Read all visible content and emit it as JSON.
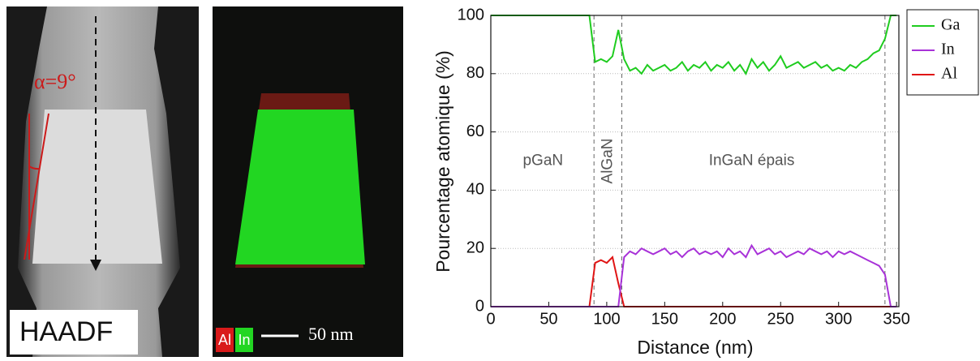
{
  "chart_data": {
    "type": "line",
    "y_label": "Pourcentage atomique (%)",
    "x_label": "Distance (nm)",
    "xlim": [
      0,
      352
    ],
    "ylim": [
      0,
      100
    ],
    "xticks": [
      0,
      50,
      100,
      150,
      200,
      250,
      300,
      350
    ],
    "yticks": [
      0,
      20,
      40,
      60,
      80,
      100
    ],
    "grid": true,
    "legend": "outside-right",
    "vlines": [
      89,
      113,
      340
    ],
    "annotations": [
      {
        "text": "pGaN",
        "x": 45,
        "y": 50
      },
      {
        "text": "AlGaN",
        "x": 101,
        "y": 50
      },
      {
        "text": "InGaN épais",
        "x": 225,
        "y": 50
      }
    ],
    "x": [
      0,
      5,
      10,
      15,
      20,
      25,
      30,
      35,
      40,
      45,
      50,
      55,
      60,
      65,
      70,
      75,
      80,
      85,
      90,
      95,
      100,
      105,
      110,
      115,
      120,
      125,
      130,
      135,
      140,
      145,
      150,
      155,
      160,
      165,
      170,
      175,
      180,
      185,
      190,
      195,
      200,
      205,
      210,
      215,
      220,
      225,
      230,
      235,
      240,
      245,
      250,
      255,
      260,
      265,
      270,
      275,
      280,
      285,
      290,
      295,
      300,
      305,
      310,
      315,
      320,
      325,
      330,
      335,
      340,
      345,
      350
    ],
    "series": [
      {
        "name": "Ga",
        "color": "#1fcc1f",
        "values": [
          100,
          100,
          100,
          100,
          100,
          100,
          100,
          100,
          100,
          100,
          100,
          100,
          100,
          100,
          100,
          100,
          100,
          100,
          84,
          85,
          84,
          86,
          95,
          85,
          81,
          82,
          80,
          83,
          81,
          82,
          83,
          81,
          82,
          84,
          81,
          83,
          82,
          84,
          81,
          83,
          82,
          84,
          81,
          83,
          80,
          85,
          82,
          84,
          81,
          83,
          86,
          82,
          83,
          84,
          82,
          83,
          84,
          82,
          83,
          81,
          82,
          81,
          83,
          82,
          84,
          85,
          87,
          88,
          92,
          100,
          100
        ]
      },
      {
        "name": "In",
        "color": "#a832d8",
        "values": [
          0,
          0,
          0,
          0,
          0,
          0,
          0,
          0,
          0,
          0,
          0,
          0,
          0,
          0,
          0,
          0,
          0,
          0,
          0,
          0,
          0,
          0,
          0,
          17,
          19,
          18,
          20,
          19,
          18,
          19,
          20,
          18,
          19,
          17,
          19,
          20,
          18,
          19,
          18,
          19,
          17,
          20,
          18,
          19,
          17,
          21,
          18,
          19,
          20,
          18,
          19,
          17,
          18,
          19,
          18,
          20,
          19,
          18,
          19,
          17,
          19,
          18,
          19,
          18,
          17,
          16,
          15,
          14,
          11,
          0,
          0
        ]
      },
      {
        "name": "Al",
        "color": "#e01515",
        "values": [
          0,
          0,
          0,
          0,
          0,
          0,
          0,
          0,
          0,
          0,
          0,
          0,
          0,
          0,
          0,
          0,
          0,
          0,
          15,
          16,
          15,
          17,
          8,
          0,
          0,
          0,
          0,
          0,
          0,
          0,
          0,
          0,
          0,
          0,
          0,
          0,
          0,
          0,
          0,
          0,
          0,
          0,
          0,
          0,
          0,
          0,
          0,
          0,
          0,
          0,
          0,
          0,
          0,
          0,
          0,
          0,
          0,
          0,
          0,
          0,
          0,
          0,
          0,
          0,
          0,
          0,
          0,
          0,
          0,
          0,
          0
        ]
      }
    ]
  },
  "images": [
    {
      "label": "HAADF",
      "annotation": "α=9°"
    },
    {
      "legend": [
        "Al",
        "In"
      ],
      "scale_bar": "50 nm"
    }
  ]
}
